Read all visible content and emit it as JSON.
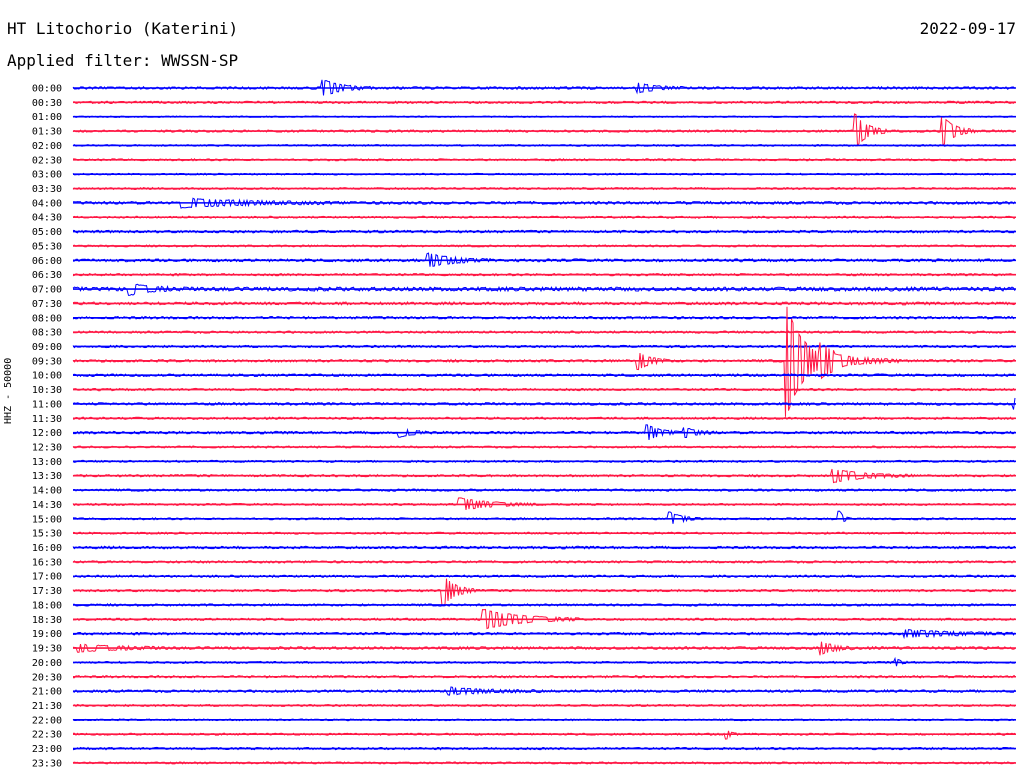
{
  "header": {
    "station": "HT Litochorio (Katerini)",
    "date": "2022-09-17",
    "filter": "Applied filter: WWSSN-SP",
    "channel": "HHZ - 50000"
  },
  "chart_data": {
    "type": "helicorder",
    "title": "HT Litochorio (Katerini)",
    "date": "2022-09-17",
    "filter": "WWSSN-SP",
    "ylabel": "HHZ - 50000",
    "row_minutes": 30,
    "row_labels": [
      "00:00",
      "00:30",
      "01:00",
      "01:30",
      "02:00",
      "02:30",
      "03:00",
      "03:30",
      "04:00",
      "04:30",
      "05:00",
      "05:30",
      "06:00",
      "06:30",
      "07:00",
      "07:30",
      "08:00",
      "08:30",
      "09:00",
      "09:30",
      "10:00",
      "10:30",
      "11:00",
      "11:30",
      "12:00",
      "12:30",
      "13:00",
      "13:30",
      "14:00",
      "14:30",
      "15:00",
      "15:30",
      "16:00",
      "16:30",
      "17:00",
      "17:30",
      "18:00",
      "18:30",
      "19:00",
      "19:30",
      "20:00",
      "20:30",
      "21:00",
      "21:30",
      "22:00",
      "22:30",
      "23:00",
      "23:30"
    ],
    "colors": [
      "#0000ff",
      "#ff1744"
    ],
    "noise": [
      0.9,
      0.8,
      0.5,
      0.8,
      0.6,
      0.7,
      0.6,
      0.7,
      1.0,
      0.7,
      0.9,
      0.7,
      1.0,
      0.8,
      1.4,
      1.0,
      0.9,
      0.8,
      0.8,
      0.9,
      0.9,
      0.8,
      0.9,
      0.8,
      0.9,
      0.7,
      0.7,
      0.8,
      0.8,
      0.7,
      0.7,
      0.7,
      0.9,
      0.8,
      0.8,
      0.8,
      0.8,
      0.8,
      0.9,
      1.0,
      0.7,
      0.8,
      0.9,
      0.7,
      0.6,
      0.7,
      0.8,
      0.7
    ],
    "events": [
      {
        "row": 0,
        "minute": 8.0,
        "amp": 7,
        "dur": 1.5
      },
      {
        "row": 0,
        "minute": 18.0,
        "amp": 4,
        "dur": 1.5
      },
      {
        "row": 3,
        "minute": 24.9,
        "amp": 16,
        "dur": 1.0
      },
      {
        "row": 3,
        "minute": 27.7,
        "amp": 13,
        "dur": 1.0
      },
      {
        "row": 8,
        "minute": 3.5,
        "amp": 4,
        "dur": 5.0
      },
      {
        "row": 12,
        "minute": 11.3,
        "amp": 6,
        "dur": 2.0
      },
      {
        "row": 14,
        "minute": 1.8,
        "amp": 5,
        "dur": 1.5
      },
      {
        "row": 19,
        "minute": 18.0,
        "amp": 8,
        "dur": 1.0
      },
      {
        "row": 19,
        "minute": 22.7,
        "amp": 55,
        "dur": 1.5
      },
      {
        "row": 19,
        "minute": 23.8,
        "amp": 10,
        "dur": 2.5
      },
      {
        "row": 22,
        "minute": 30.0,
        "amp": 5,
        "dur": 0.5
      },
      {
        "row": 24,
        "minute": 10.4,
        "amp": 4,
        "dur": 1.0
      },
      {
        "row": 24,
        "minute": 18.3,
        "amp": 7,
        "dur": 1.0
      },
      {
        "row": 24,
        "minute": 19.5,
        "amp": 4,
        "dur": 1.0
      },
      {
        "row": 27,
        "minute": 24.2,
        "amp": 6,
        "dur": 2.5
      },
      {
        "row": 29,
        "minute": 12.3,
        "amp": 6,
        "dur": 2.5
      },
      {
        "row": 30,
        "minute": 19.0,
        "amp": 6,
        "dur": 1.0
      },
      {
        "row": 30,
        "minute": 24.4,
        "amp": 7,
        "dur": 0.3
      },
      {
        "row": 35,
        "minute": 11.8,
        "amp": 14,
        "dur": 1.0
      },
      {
        "row": 37,
        "minute": 13.1,
        "amp": 9,
        "dur": 3.0
      },
      {
        "row": 38,
        "minute": 26.5,
        "amp": 3,
        "dur": 4.0
      },
      {
        "row": 39,
        "minute": 0.2,
        "amp": 3,
        "dur": 3.0
      },
      {
        "row": 39,
        "minute": 23.8,
        "amp": 6,
        "dur": 1.0
      },
      {
        "row": 40,
        "minute": 26.2,
        "amp": 3,
        "dur": 0.4
      },
      {
        "row": 42,
        "minute": 12.0,
        "amp": 3,
        "dur": 3.0
      },
      {
        "row": 45,
        "minute": 20.8,
        "amp": 4,
        "dur": 0.4
      }
    ]
  }
}
